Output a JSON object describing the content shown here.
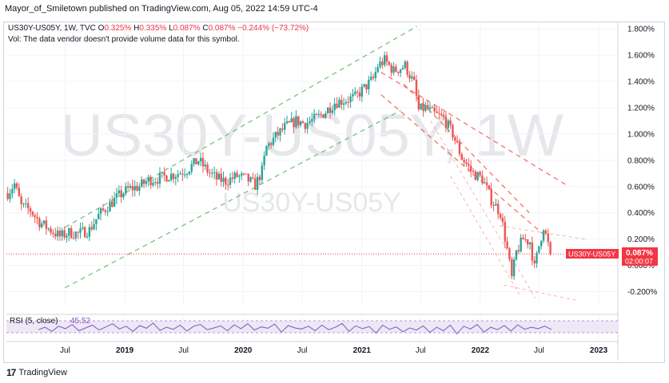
{
  "header": {
    "published_text": "Mayor_of_Smiletown published on TradingView.com, Aug 05, 2022 14:59 UTC-4"
  },
  "legend": {
    "symbol": "US30Y-US05Y, 1W, TVC",
    "open_label": "O",
    "open": "0.325%",
    "high_label": "H",
    "high": "0.335%",
    "low_label": "L",
    "low": "0.087%",
    "close_label": "C",
    "close": "0.087%",
    "change": "−0.244% (−73.72%)",
    "volume_note": "Vol: The data vendor doesn't provide volume data for this symbol."
  },
  "watermark": {
    "big": "US30Y-US05Y, 1W",
    "small": "US30Y-US05Y"
  },
  "price_tag": {
    "symbol": "US30Y-US05Y",
    "value": "0.087%",
    "countdown": "02:00:07"
  },
  "rsi": {
    "label": "RSI (5, close)",
    "value": "45.52"
  },
  "footer": {
    "logo_text": "TradingView"
  },
  "colors": {
    "up": "#26a69a",
    "down": "#ef5350",
    "channel_green": "#4caf50",
    "channel_red": "#f44336",
    "rsi_line": "#7e57c2",
    "rsi_band": "#ede7f6",
    "price_tag": "#f23645"
  },
  "chart_data": {
    "type": "candlestick",
    "title": "US30Y-US05Y, 1W, TVC",
    "ylim": [
      -0.3,
      1.85
    ],
    "y_ticks": [
      "1.800%",
      "1.600%",
      "1.400%",
      "1.200%",
      "1.000%",
      "0.800%",
      "0.600%",
      "0.400%",
      "0.200%",
      "0.000%",
      "-0.200%"
    ],
    "x_ticks": [
      "Jul",
      "2019",
      "Jul",
      "2020",
      "Jul",
      "2021",
      "Jul",
      "2022",
      "Jul",
      "2023"
    ],
    "x_tick_dates": [
      "2018-07-01",
      "2019-01-01",
      "2019-07-01",
      "2020-01-01",
      "2020-07-01",
      "2021-01-01",
      "2021-07-01",
      "2022-01-01",
      "2022-07-01",
      "2023-01-01"
    ],
    "x_range": [
      "2018-01-01",
      "2023-03-01"
    ],
    "grid": true,
    "close_path": [
      {
        "date": "2018-01-05",
        "value": 0.55
      },
      {
        "date": "2018-01-26",
        "value": 0.62
      },
      {
        "date": "2018-02-16",
        "value": 0.45
      },
      {
        "date": "2018-03-16",
        "value": 0.42
      },
      {
        "date": "2018-04-13",
        "value": 0.33
      },
      {
        "date": "2018-05-11",
        "value": 0.28
      },
      {
        "date": "2018-06-15",
        "value": 0.22
      },
      {
        "date": "2018-07-13",
        "value": 0.25
      },
      {
        "date": "2018-08-10",
        "value": 0.24
      },
      {
        "date": "2018-09-14",
        "value": 0.27
      },
      {
        "date": "2018-10-12",
        "value": 0.38
      },
      {
        "date": "2018-11-09",
        "value": 0.45
      },
      {
        "date": "2018-12-14",
        "value": 0.53
      },
      {
        "date": "2019-01-11",
        "value": 0.58
      },
      {
        "date": "2019-02-15",
        "value": 0.6
      },
      {
        "date": "2019-03-15",
        "value": 0.65
      },
      {
        "date": "2019-04-12",
        "value": 0.66
      },
      {
        "date": "2019-05-10",
        "value": 0.68
      },
      {
        "date": "2019-06-14",
        "value": 0.7
      },
      {
        "date": "2019-07-12",
        "value": 0.73
      },
      {
        "date": "2019-08-16",
        "value": 0.8
      },
      {
        "date": "2019-09-13",
        "value": 0.72
      },
      {
        "date": "2019-10-11",
        "value": 0.66
      },
      {
        "date": "2019-11-08",
        "value": 0.64
      },
      {
        "date": "2019-12-13",
        "value": 0.68
      },
      {
        "date": "2020-01-10",
        "value": 0.66
      },
      {
        "date": "2020-02-07",
        "value": 0.61
      },
      {
        "date": "2020-02-28",
        "value": 0.72
      },
      {
        "date": "2020-03-13",
        "value": 0.9
      },
      {
        "date": "2020-04-10",
        "value": 0.98
      },
      {
        "date": "2020-05-08",
        "value": 1.05
      },
      {
        "date": "2020-06-12",
        "value": 1.1
      },
      {
        "date": "2020-07-10",
        "value": 1.08
      },
      {
        "date": "2020-08-14",
        "value": 1.12
      },
      {
        "date": "2020-09-11",
        "value": 1.17
      },
      {
        "date": "2020-10-09",
        "value": 1.24
      },
      {
        "date": "2020-11-13",
        "value": 1.26
      },
      {
        "date": "2020-12-11",
        "value": 1.28
      },
      {
        "date": "2021-01-08",
        "value": 1.35
      },
      {
        "date": "2021-02-05",
        "value": 1.42
      },
      {
        "date": "2021-02-19",
        "value": 1.52
      },
      {
        "date": "2021-03-12",
        "value": 1.56
      },
      {
        "date": "2021-04-09",
        "value": 1.48
      },
      {
        "date": "2021-05-14",
        "value": 1.52
      },
      {
        "date": "2021-06-11",
        "value": 1.38
      },
      {
        "date": "2021-06-25",
        "value": 1.18
      },
      {
        "date": "2021-07-16",
        "value": 1.2
      },
      {
        "date": "2021-08-13",
        "value": 1.15
      },
      {
        "date": "2021-09-10",
        "value": 1.12
      },
      {
        "date": "2021-10-08",
        "value": 1.0
      },
      {
        "date": "2021-11-05",
        "value": 0.82
      },
      {
        "date": "2021-12-10",
        "value": 0.7
      },
      {
        "date": "2022-01-07",
        "value": 0.66
      },
      {
        "date": "2022-02-04",
        "value": 0.5
      },
      {
        "date": "2022-03-04",
        "value": 0.4
      },
      {
        "date": "2022-03-25",
        "value": 0.12
      },
      {
        "date": "2022-04-08",
        "value": -0.1
      },
      {
        "date": "2022-04-22",
        "value": 0.1
      },
      {
        "date": "2022-05-13",
        "value": 0.2
      },
      {
        "date": "2022-06-03",
        "value": 0.18
      },
      {
        "date": "2022-06-17",
        "value": -0.02
      },
      {
        "date": "2022-07-01",
        "value": 0.15
      },
      {
        "date": "2022-07-15",
        "value": 0.3
      },
      {
        "date": "2022-08-05",
        "value": 0.087
      }
    ],
    "last_value": 0.087,
    "rsi_series": [
      45,
      52,
      40,
      55,
      48,
      60,
      42,
      50,
      58,
      44,
      53,
      62,
      47,
      55,
      40,
      57,
      49,
      64,
      43,
      52,
      46,
      58,
      41,
      55,
      60,
      45,
      50,
      56,
      42,
      59,
      48,
      62,
      44,
      53,
      49,
      61,
      38,
      57,
      50,
      47,
      55,
      42,
      58,
      45,
      52,
      63,
      40,
      56,
      48,
      54,
      35,
      58,
      46,
      53,
      39,
      50,
      44,
      56,
      37,
      52,
      42,
      58,
      33,
      55,
      47,
      60,
      38,
      52,
      45,
      57,
      41,
      59,
      46,
      52,
      48,
      55,
      45.52
    ]
  }
}
